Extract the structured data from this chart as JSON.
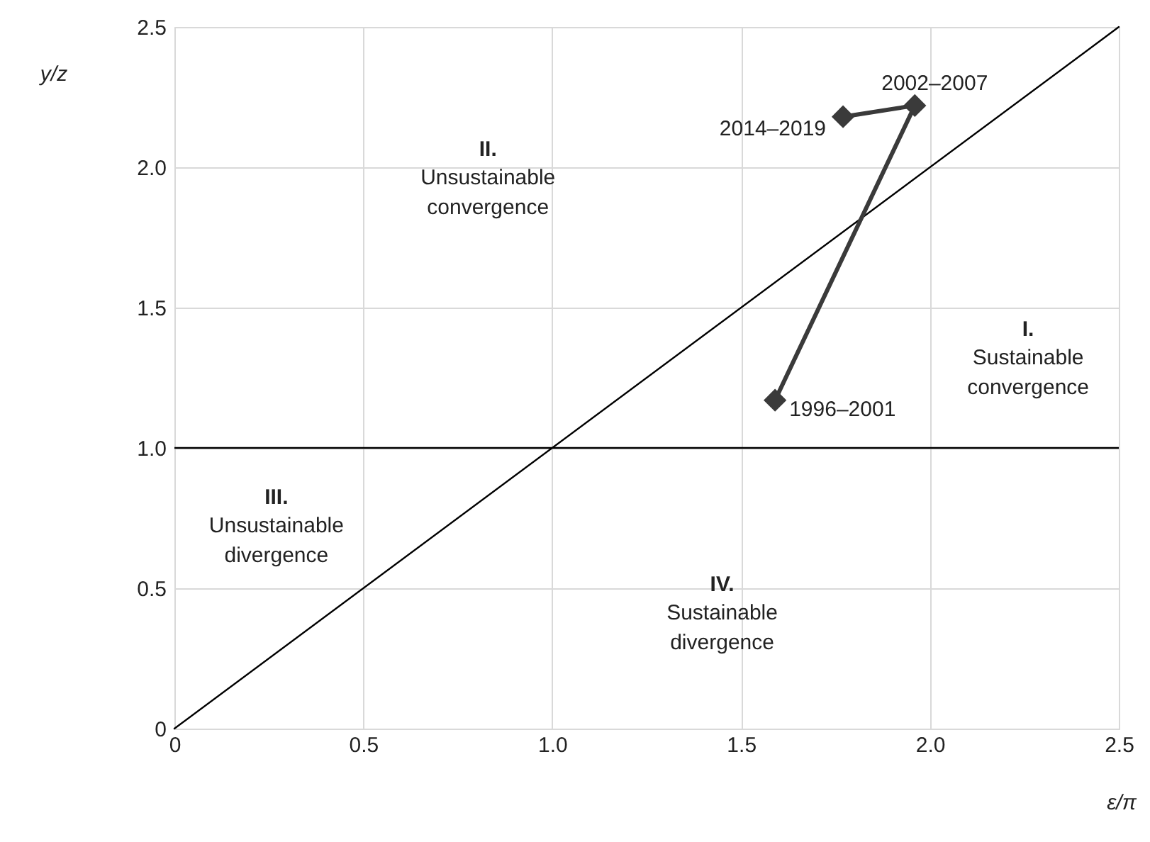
{
  "chart_data": {
    "type": "line",
    "xlabel": "ε/π",
    "ylabel": "y/z",
    "xlim": [
      0,
      2.5
    ],
    "ylim": [
      0,
      2.5
    ],
    "xticks": [
      {
        "value": 0,
        "label": "0"
      },
      0.5,
      {
        "value": 1,
        "label": "1.0"
      },
      1.5,
      {
        "value": 2,
        "label": "2.0"
      },
      2.5
    ],
    "yticks": [
      {
        "value": 0,
        "label": "0"
      },
      0.5,
      {
        "value": 1,
        "label": "1.0"
      },
      1.5,
      {
        "value": 2,
        "label": "2.0"
      },
      2.5
    ],
    "grid": true,
    "series": [
      {
        "color": "#000000",
        "x": [
          0,
          2.5
        ],
        "values": [
          0,
          2.5
        ],
        "marker": "none"
      },
      {
        "color": "#3a3a3a",
        "x": [
          1.59,
          1.96,
          1.77
        ],
        "values": [
          1.17,
          2.22,
          2.18
        ],
        "marker": "diamond"
      }
    ],
    "ref_lines": [
      {
        "axis": "y",
        "value": 1,
        "color": "#000000"
      }
    ],
    "annotations": [
      {
        "text": "1996–2001",
        "x": 1.59,
        "y": 1.17
      },
      {
        "text": "2002–2007",
        "x": 1.96,
        "y": 2.22
      },
      {
        "text": "2014–2019",
        "x": 1.77,
        "y": 2.18
      },
      "I.\nSustainable\nconvergence",
      "II.\nUnsustainable\nconvergence",
      "III.\nUnsustainable\ndivergence",
      "IV.\nSustainable\ndivergence"
    ]
  }
}
